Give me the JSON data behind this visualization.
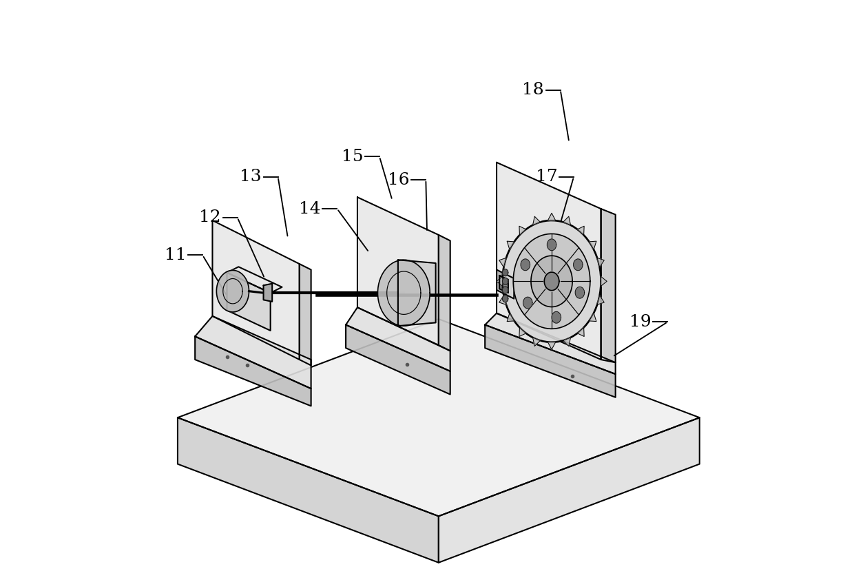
{
  "title": "",
  "background_color": "#ffffff",
  "line_color": "#000000",
  "line_width": 1.5,
  "label_fontsize": 18,
  "figsize": [
    12.4,
    8.42
  ]
}
